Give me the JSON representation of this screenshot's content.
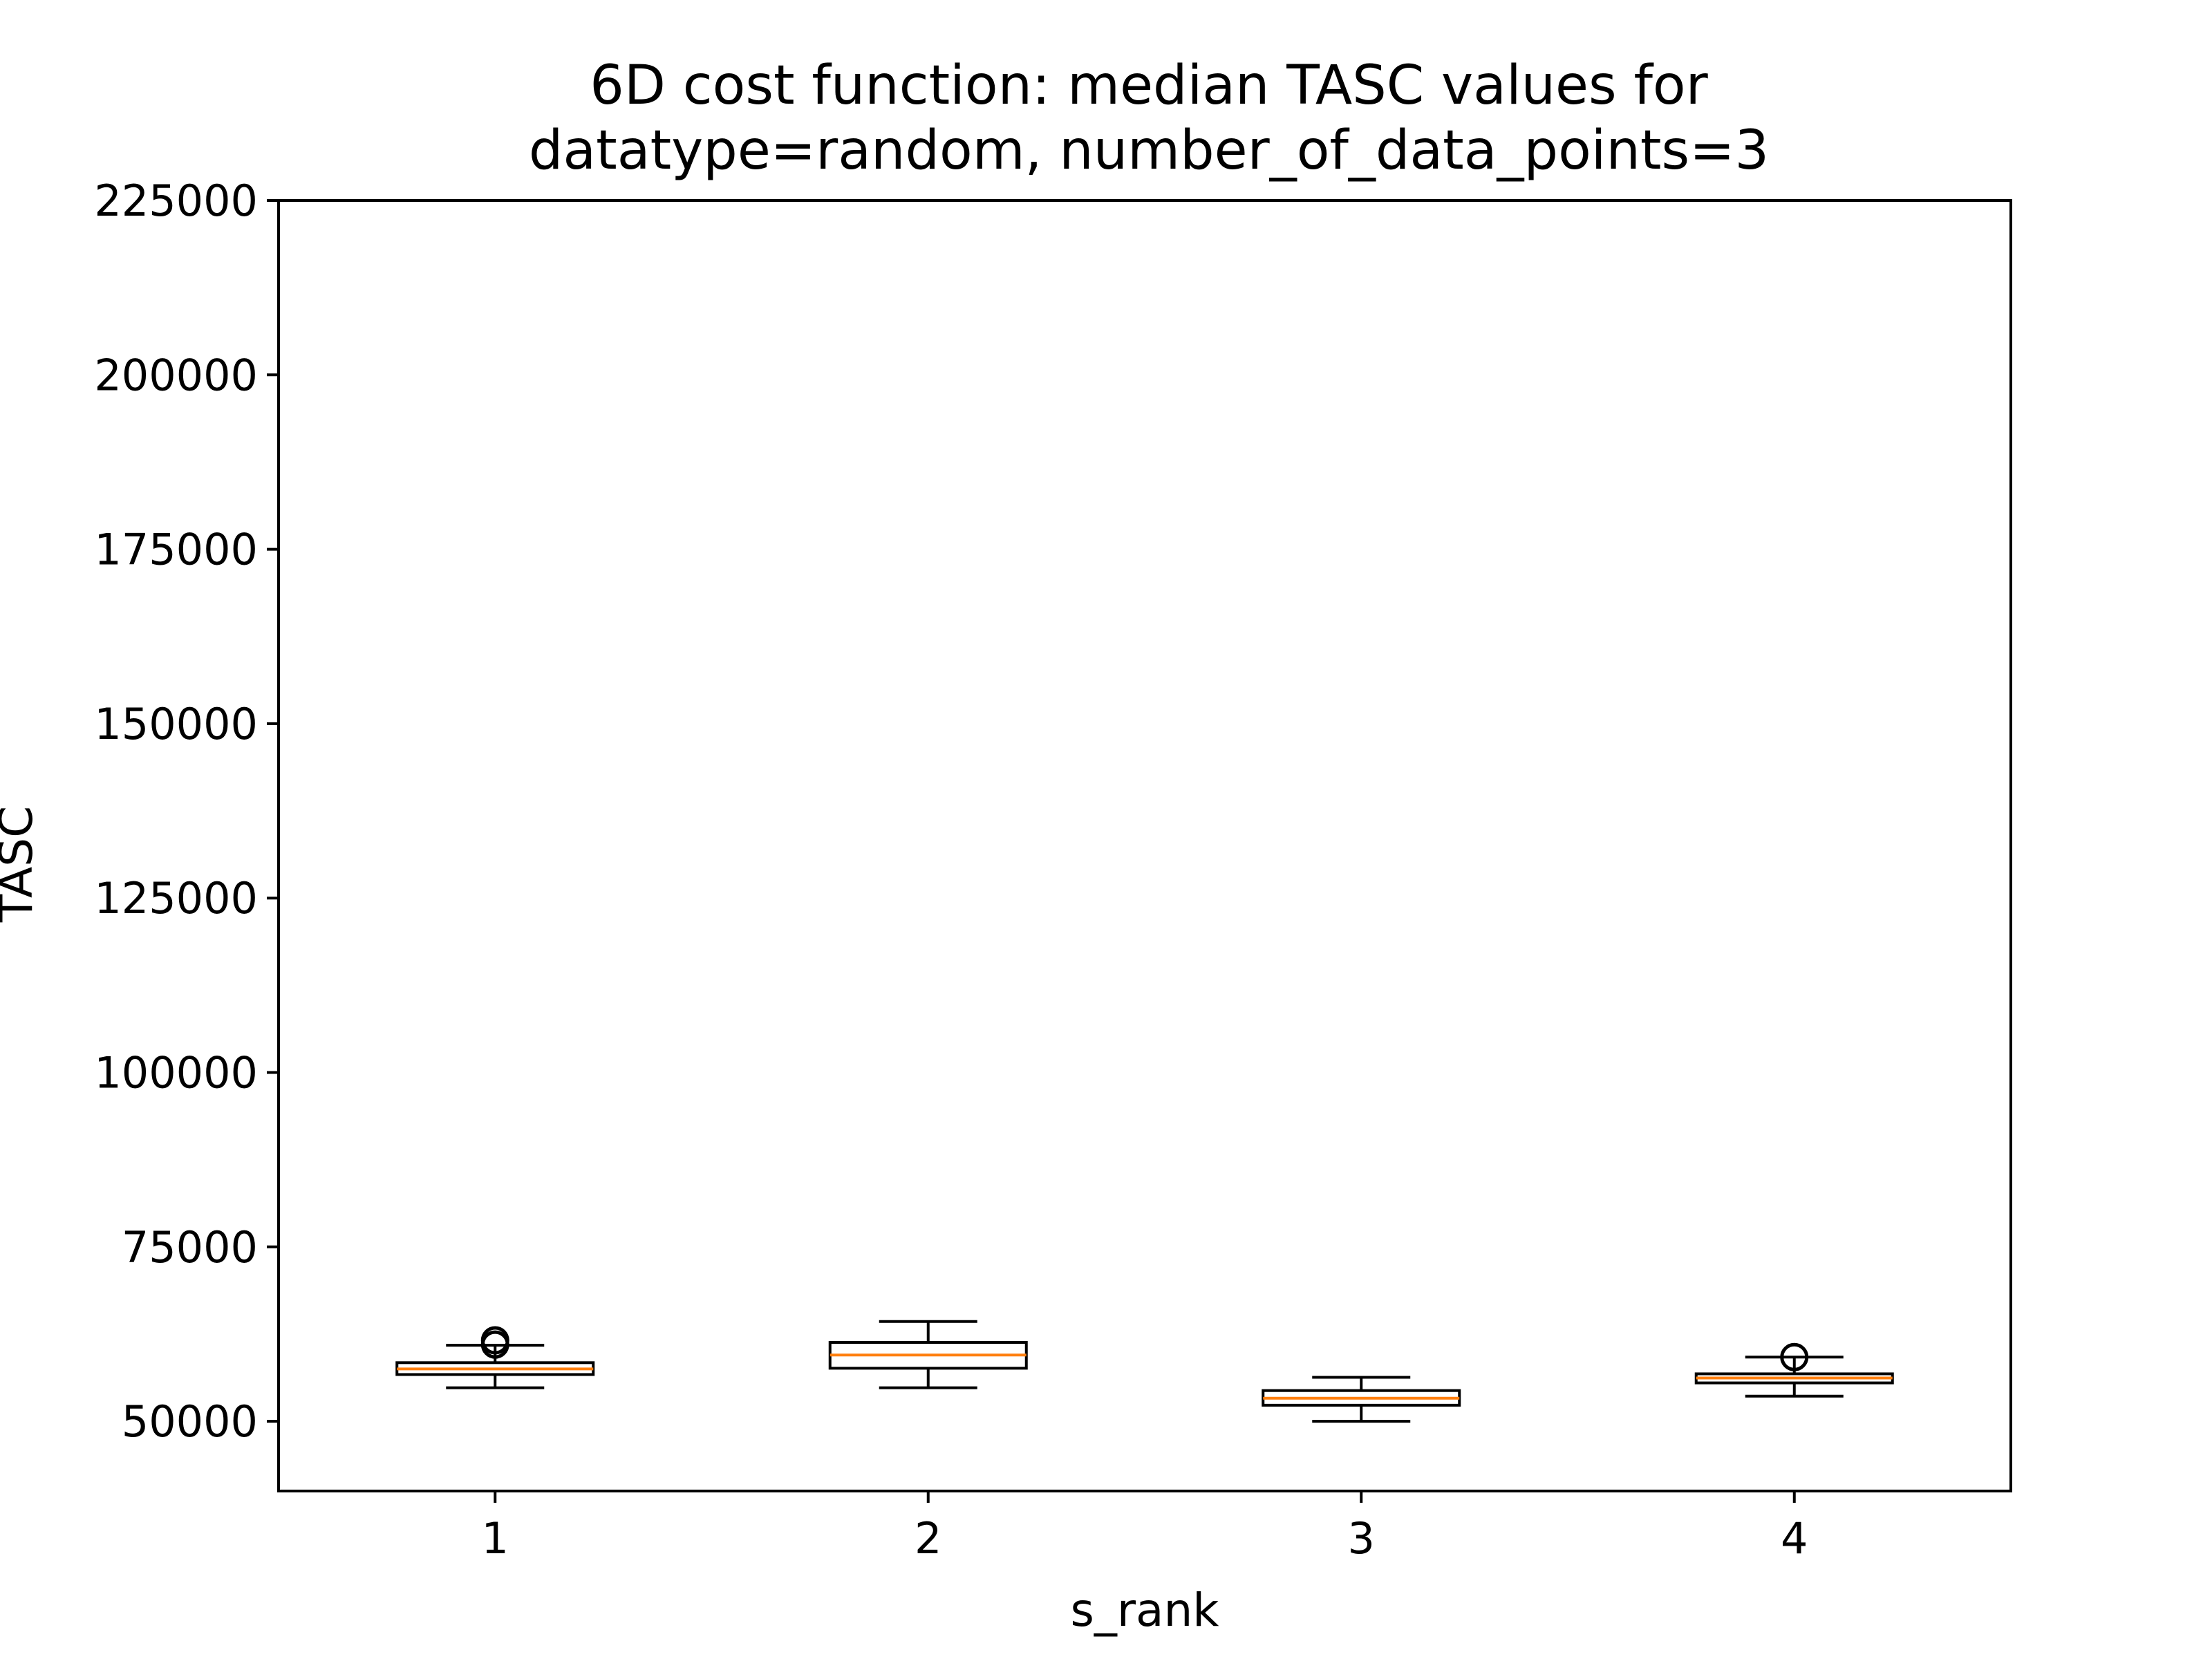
{
  "chart_data": {
    "type": "box",
    "title": "6D cost function: median TASC values for",
    "subtitle": "datatype=random, number_of_data_points=3",
    "xlabel": "s_rank",
    "ylabel": "TASC",
    "ylim": [
      40000,
      225000
    ],
    "yticks": [
      50000,
      75000,
      100000,
      125000,
      150000,
      175000,
      200000,
      225000
    ],
    "ytick_labels": [
      "50000",
      "75000",
      "100000",
      "125000",
      "150000",
      "175000",
      "200000",
      "225000"
    ],
    "categories": [
      "1",
      "2",
      "3",
      "4"
    ],
    "boxes": [
      {
        "category": "1",
        "whisker_low": 54800,
        "q1": 56700,
        "median": 57500,
        "q3": 58400,
        "whisker_high": 60900,
        "outliers": [
          61000,
          61600
        ]
      },
      {
        "category": "2",
        "whisker_low": 54800,
        "q1": 57600,
        "median": 59500,
        "q3": 61300,
        "whisker_high": 64300,
        "outliers": []
      },
      {
        "category": "3",
        "whisker_low": 50000,
        "q1": 52300,
        "median": 53300,
        "q3": 54400,
        "whisker_high": 56300,
        "outliers": []
      },
      {
        "category": "4",
        "whisker_low": 53600,
        "q1": 55500,
        "median": 56200,
        "q3": 56800,
        "whisker_high": 59200,
        "outliers": [
          59200
        ]
      }
    ],
    "grid": false,
    "legend": "none",
    "colors": {
      "box_edge": "#000000",
      "median": "#ff7f0e",
      "outlier_edge": "#000000",
      "axes": "#000000"
    }
  }
}
